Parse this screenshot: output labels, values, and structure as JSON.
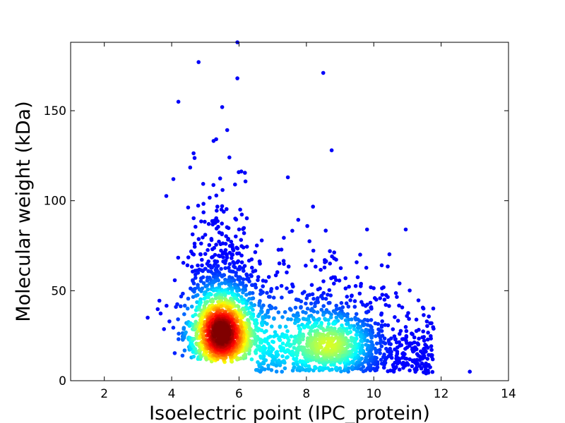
{
  "chart_data": {
    "type": "scatter",
    "title": "",
    "xlabel": "Isoelectric point (IPC_protein)",
    "ylabel": "Molecular weight (kDa)",
    "xlim": [
      1,
      14
    ],
    "ylim": [
      0,
      188
    ],
    "xticks": [
      2,
      4,
      6,
      8,
      10,
      12,
      14
    ],
    "yticks": [
      0,
      50,
      100,
      150
    ],
    "grid": false,
    "legend": "none",
    "colormap": "jet (point density)",
    "colors": {
      "low_density": "#0000cc",
      "mid_low": "#00bfff",
      "mid": "#7fff7f",
      "mid_high": "#ffcc00",
      "high_density": "#b30000"
    },
    "clusters": [
      {
        "center_x": 5.5,
        "center_y": 28,
        "note": "densest region, ~4.5-6.5 pI, ~10-50 kDa"
      },
      {
        "center_x": 8.8,
        "center_y": 20,
        "note": "secondary dense region, ~8-10 pI, ~10-30 kDa"
      }
    ],
    "outliers": [
      {
        "x": 4.8,
        "y": 177
      },
      {
        "x": 5.95,
        "y": 188
      },
      {
        "x": 8.5,
        "y": 171
      },
      {
        "x": 5.95,
        "y": 168
      },
      {
        "x": 4.2,
        "y": 155
      },
      {
        "x": 5.5,
        "y": 152
      },
      {
        "x": 8.75,
        "y": 128
      },
      {
        "x": 4.05,
        "y": 112
      },
      {
        "x": 7.45,
        "y": 113
      },
      {
        "x": 12.85,
        "y": 5
      },
      {
        "x": 10.95,
        "y": 84
      },
      {
        "x": 9.8,
        "y": 84
      }
    ]
  }
}
